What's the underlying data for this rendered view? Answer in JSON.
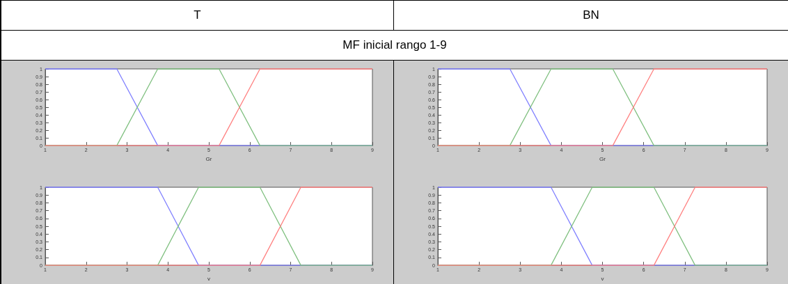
{
  "chart_data": [
    {
      "type": "line",
      "title": "T",
      "subtitle": "MF inicial rango 1-9",
      "xlabel": "Gr",
      "xlim": [
        1,
        9
      ],
      "xticks": [
        1,
        2,
        3,
        4,
        5,
        6,
        7,
        8,
        9
      ],
      "ylim": [
        0,
        1
      ],
      "yticks": [
        0,
        0.1,
        0.2,
        0.3,
        0.4,
        0.5,
        0.6,
        0.7,
        0.8,
        0.9,
        1
      ],
      "grid": false,
      "marker": "none",
      "line_style": "solid",
      "series": [
        {
          "color": "#8080ff",
          "x": [
            1,
            2.75,
            3.75,
            9
          ],
          "values": [
            1,
            1,
            0,
            0
          ]
        },
        {
          "color": "#80c080",
          "x": [
            1,
            2.75,
            3.75,
            5.25,
            6.25,
            9
          ],
          "values": [
            0,
            0,
            1,
            1,
            0,
            0
          ]
        },
        {
          "color": "#ff8080",
          "x": [
            1,
            5.25,
            6.25,
            9
          ],
          "values": [
            0,
            0,
            1,
            1
          ]
        }
      ]
    },
    {
      "type": "line",
      "title": "BN",
      "xlabel": "Gr",
      "xlim": [
        1,
        9
      ],
      "xticks": [
        1,
        2,
        3,
        4,
        5,
        6,
        7,
        8,
        9
      ],
      "ylim": [
        0,
        1
      ],
      "yticks": [
        0,
        0.1,
        0.2,
        0.3,
        0.4,
        0.5,
        0.6,
        0.7,
        0.8,
        0.9,
        1
      ],
      "grid": false,
      "marker": "none",
      "line_style": "solid",
      "series": [
        {
          "color": "#8080ff",
          "x": [
            1,
            2.75,
            3.75,
            9
          ],
          "values": [
            1,
            1,
            0,
            0
          ]
        },
        {
          "color": "#80c080",
          "x": [
            1,
            2.75,
            3.75,
            5.25,
            6.25,
            9
          ],
          "values": [
            0,
            0,
            1,
            1,
            0,
            0
          ]
        },
        {
          "color": "#ff8080",
          "x": [
            1,
            5.25,
            6.25,
            9
          ],
          "values": [
            0,
            0,
            1,
            1
          ]
        }
      ]
    },
    {
      "type": "line",
      "xlabel": "v",
      "xlim": [
        1,
        9
      ],
      "xticks": [
        1,
        2,
        3,
        4,
        5,
        6,
        7,
        8,
        9
      ],
      "ylim": [
        0,
        1
      ],
      "yticks": [
        0,
        0.1,
        0.2,
        0.3,
        0.4,
        0.5,
        0.6,
        0.7,
        0.8,
        0.9,
        1
      ],
      "grid": false,
      "marker": "none",
      "line_style": "solid",
      "series": [
        {
          "color": "#8080ff",
          "x": [
            1,
            3.75,
            4.75,
            9
          ],
          "values": [
            1,
            1,
            0,
            0
          ]
        },
        {
          "color": "#80c080",
          "x": [
            1,
            3.75,
            4.75,
            6.25,
            7.25,
            9
          ],
          "values": [
            0,
            0,
            1,
            1,
            0,
            0
          ]
        },
        {
          "color": "#ff8080",
          "x": [
            1,
            6.25,
            7.25,
            9
          ],
          "values": [
            0,
            0,
            1,
            1
          ]
        }
      ]
    },
    {
      "type": "line",
      "xlabel": "v",
      "xlim": [
        1,
        9
      ],
      "xticks": [
        1,
        2,
        3,
        4,
        5,
        6,
        7,
        8,
        9
      ],
      "ylim": [
        0,
        1
      ],
      "yticks": [
        0,
        0.1,
        0.2,
        0.3,
        0.4,
        0.5,
        0.6,
        0.7,
        0.8,
        0.9,
        1
      ],
      "grid": false,
      "marker": "none",
      "line_style": "solid",
      "series": [
        {
          "color": "#8080ff",
          "x": [
            1,
            3.75,
            4.75,
            9
          ],
          "values": [
            1,
            1,
            0,
            0
          ]
        },
        {
          "color": "#80c080",
          "x": [
            1,
            3.75,
            4.75,
            6.25,
            7.25,
            9
          ],
          "values": [
            0,
            0,
            1,
            1,
            0,
            0
          ]
        },
        {
          "color": "#ff8080",
          "x": [
            1,
            6.25,
            7.25,
            9
          ],
          "values": [
            0,
            0,
            1,
            1
          ]
        }
      ]
    }
  ]
}
